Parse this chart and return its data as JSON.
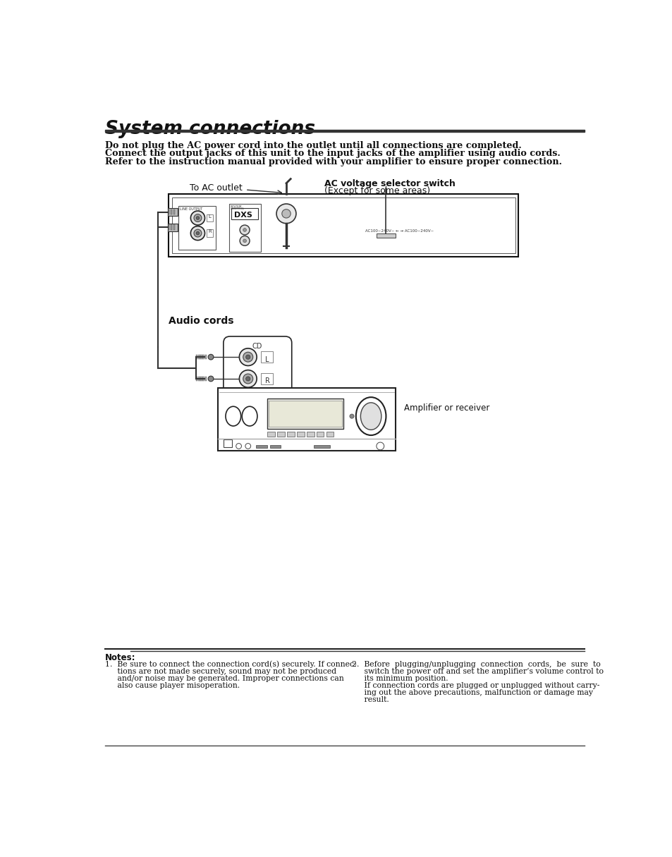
{
  "title": "System connections",
  "bg_color": "#ffffff",
  "title_color": "#111111",
  "text_color": "#111111",
  "intro_lines": [
    "Do not plug the AC power cord into the outlet until all connections are completed.",
    "Connect the output jacks of this unit to the input jacks of the amplifier using audio cords.",
    "Refer to the instruction manual provided with your amplifier to ensure proper connection."
  ],
  "label_to_ac": "To AC outlet",
  "label_ac_voltage": "AC voltage selector switch",
  "label_ac_voltage2": "(Except for some areas)",
  "label_audio_cords": "Audio cords",
  "label_amplifier": "Amplifier or receiver",
  "notes_header": "Notes:",
  "note1_lines": [
    "1.  Be sure to connect the connection cord(s) securely. If connec-",
    "     tions are not made securely, sound may not be produced",
    "     and/or noise may be generated. Improper connections can",
    "     also cause player misoperation."
  ],
  "note2_lines": [
    "2.  Before  plugging/unplugging  connection  cords,  be  sure  to",
    "     switch the power off and set the amplifier’s volume control to",
    "     its minimum position.",
    "     If connection cords are plugged or unplugged without carry-",
    "     ing out the above precautions, malfunction or damage may",
    "     result."
  ]
}
